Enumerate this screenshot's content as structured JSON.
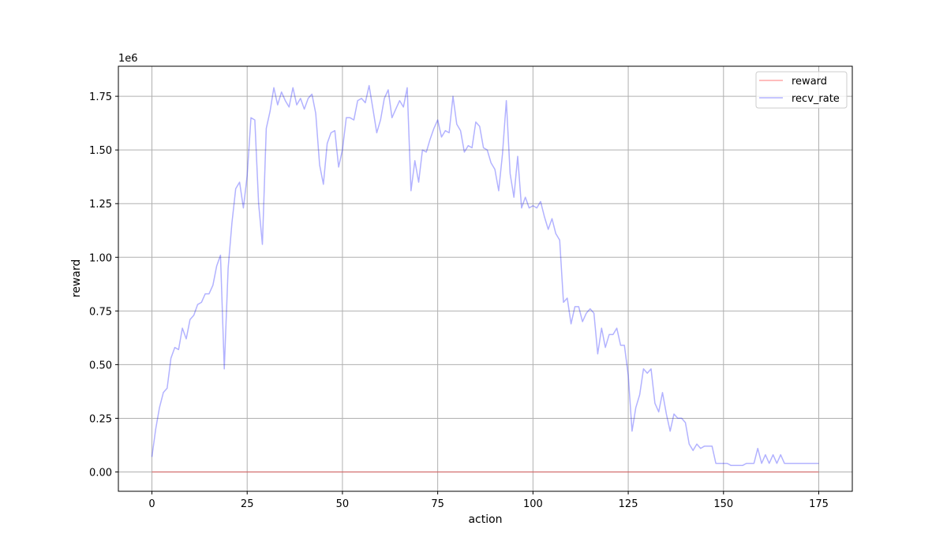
{
  "chart_data": {
    "type": "line",
    "xlabel": "action",
    "ylabel": "reward",
    "offset_label": "1e6",
    "xlim": [
      -8.8,
      183.8
    ],
    "ylim": [
      -0.09,
      1.89
    ],
    "x_ticks": [
      0,
      25,
      50,
      75,
      100,
      125,
      150,
      175
    ],
    "y_ticks": [
      0.0,
      0.25,
      0.5,
      0.75,
      1.0,
      1.25,
      1.5,
      1.75
    ],
    "y_tick_labels": [
      "0.00",
      "0.25",
      "0.50",
      "0.75",
      "1.00",
      "1.25",
      "1.50",
      "1.75"
    ],
    "grid": true,
    "legend_position": "top-right",
    "series": [
      {
        "name": "reward",
        "color": "#ff0000",
        "alpha": 0.35,
        "x": [
          0,
          175
        ],
        "values": [
          0.0,
          0.0
        ]
      },
      {
        "name": "recv_rate",
        "color": "#0000ff",
        "alpha": 0.3,
        "x": [
          0,
          1,
          2,
          3,
          4,
          5,
          6,
          7,
          8,
          9,
          10,
          11,
          12,
          13,
          14,
          15,
          16,
          17,
          18,
          19,
          20,
          21,
          22,
          23,
          24,
          25,
          26,
          27,
          28,
          29,
          30,
          31,
          32,
          33,
          34,
          35,
          36,
          37,
          38,
          39,
          40,
          41,
          42,
          43,
          44,
          45,
          46,
          47,
          48,
          49,
          50,
          51,
          52,
          53,
          54,
          55,
          56,
          57,
          58,
          59,
          60,
          61,
          62,
          63,
          64,
          65,
          66,
          67,
          68,
          69,
          70,
          71,
          72,
          73,
          74,
          75,
          76,
          77,
          78,
          79,
          80,
          81,
          82,
          83,
          84,
          85,
          86,
          87,
          88,
          89,
          90,
          91,
          92,
          93,
          94,
          95,
          96,
          97,
          98,
          99,
          100,
          101,
          102,
          103,
          104,
          105,
          106,
          107,
          108,
          109,
          110,
          111,
          112,
          113,
          114,
          115,
          116,
          117,
          118,
          119,
          120,
          121,
          122,
          123,
          124,
          125,
          126,
          127,
          128,
          129,
          130,
          131,
          132,
          133,
          134,
          135,
          136,
          137,
          138,
          139,
          140,
          141,
          142,
          143,
          144,
          145,
          146,
          147,
          148,
          149,
          150,
          151,
          152,
          153,
          154,
          155,
          156,
          157,
          158,
          159,
          160,
          161,
          162,
          163,
          164,
          165,
          166,
          167,
          168,
          169,
          170,
          171,
          172,
          173,
          174,
          175
        ],
        "values": [
          0.07,
          0.2,
          0.3,
          0.37,
          0.39,
          0.53,
          0.58,
          0.57,
          0.67,
          0.62,
          0.71,
          0.73,
          0.78,
          0.79,
          0.83,
          0.83,
          0.87,
          0.96,
          1.01,
          0.48,
          0.95,
          1.16,
          1.32,
          1.35,
          1.23,
          1.38,
          1.65,
          1.64,
          1.25,
          1.06,
          1.6,
          1.68,
          1.79,
          1.71,
          1.77,
          1.73,
          1.7,
          1.79,
          1.71,
          1.74,
          1.69,
          1.74,
          1.76,
          1.67,
          1.43,
          1.34,
          1.53,
          1.58,
          1.59,
          1.42,
          1.5,
          1.65,
          1.65,
          1.64,
          1.73,
          1.74,
          1.72,
          1.8,
          1.69,
          1.58,
          1.64,
          1.74,
          1.78,
          1.65,
          1.69,
          1.73,
          1.7,
          1.79,
          1.31,
          1.45,
          1.35,
          1.5,
          1.49,
          1.55,
          1.6,
          1.64,
          1.56,
          1.59,
          1.58,
          1.75,
          1.62,
          1.59,
          1.49,
          1.52,
          1.51,
          1.63,
          1.61,
          1.51,
          1.5,
          1.44,
          1.41,
          1.31,
          1.48,
          1.73,
          1.39,
          1.28,
          1.47,
          1.23,
          1.28,
          1.23,
          1.24,
          1.23,
          1.26,
          1.19,
          1.13,
          1.18,
          1.11,
          1.08,
          0.79,
          0.81,
          0.69,
          0.77,
          0.77,
          0.7,
          0.74,
          0.76,
          0.74,
          0.55,
          0.67,
          0.58,
          0.64,
          0.64,
          0.67,
          0.59,
          0.59,
          0.45,
          0.19,
          0.3,
          0.36,
          0.48,
          0.46,
          0.48,
          0.32,
          0.28,
          0.37,
          0.27,
          0.19,
          0.27,
          0.25,
          0.25,
          0.23,
          0.13,
          0.1,
          0.13,
          0.11,
          0.12,
          0.12,
          0.12,
          0.04,
          0.04,
          0.04,
          0.04,
          0.03,
          0.03,
          0.03,
          0.03,
          0.04,
          0.04,
          0.04,
          0.11,
          0.04,
          0.08,
          0.04,
          0.08,
          0.04,
          0.08,
          0.04,
          0.04,
          0.04,
          0.04,
          0.04,
          0.04,
          0.04,
          0.04,
          0.04,
          0.04
        ]
      }
    ]
  }
}
